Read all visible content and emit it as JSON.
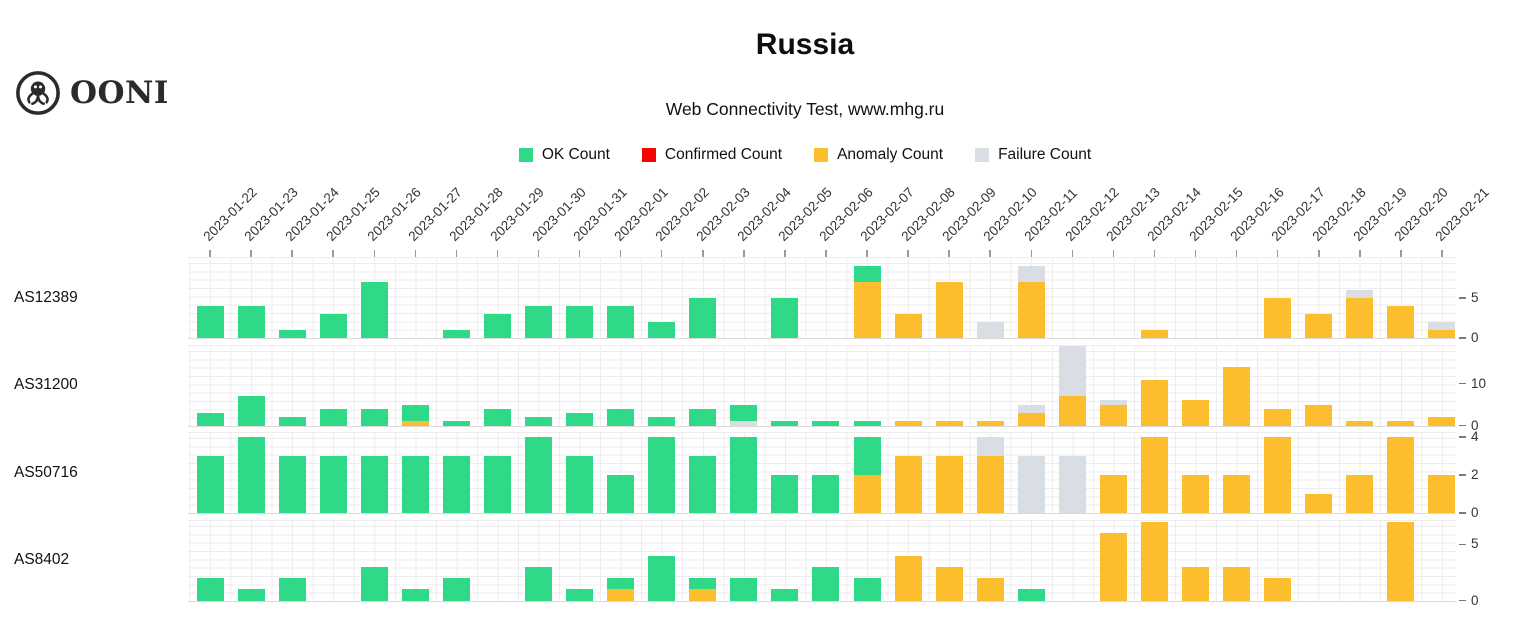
{
  "logo": {
    "text": "OONI"
  },
  "header": {
    "title": "Russia",
    "subtitle": "Web Connectivity Test, www.mhg.ru"
  },
  "legend": [
    {
      "key": "ok",
      "label": "OK Count",
      "color": "#2fd987"
    },
    {
      "key": "confirmed",
      "label": "Confirmed Count",
      "color": "#f50404"
    },
    {
      "key": "anomaly",
      "label": "Anomaly Count",
      "color": "#fcbe2c"
    },
    {
      "key": "failure",
      "label": "Failure Count",
      "color": "#d9dee4"
    }
  ],
  "chart_data": {
    "type": "bar",
    "stacked": true,
    "stack_order": [
      "anomaly",
      "confirmed",
      "failure",
      "ok"
    ],
    "title": "Russia",
    "subtitle": "Web Connectivity Test, www.mhg.ru",
    "legend_position": "top-center",
    "grid": true,
    "x_tick_rotation": -45,
    "categories": [
      "2023-01-22",
      "2023-01-23",
      "2023-01-24",
      "2023-01-25",
      "2023-01-26",
      "2023-01-27",
      "2023-01-28",
      "2023-01-29",
      "2023-01-30",
      "2023-01-31",
      "2023-02-01",
      "2023-02-02",
      "2023-02-03",
      "2023-02-04",
      "2023-02-05",
      "2023-02-06",
      "2023-02-07",
      "2023-02-08",
      "2023-02-09",
      "2023-02-10",
      "2023-02-11",
      "2023-02-12",
      "2023-02-13",
      "2023-02-14",
      "2023-02-15",
      "2023-02-16",
      "2023-02-17",
      "2023-02-18",
      "2023-02-19",
      "2023-02-20",
      "2023-02-21"
    ],
    "panels": [
      {
        "label": "AS12389",
        "ylim": [
          0,
          10.1
        ],
        "yticks": [
          0,
          5
        ],
        "series": {
          "ok": [
            4,
            4,
            1,
            3,
            7,
            0,
            1,
            3,
            4,
            4,
            4,
            2,
            5,
            0,
            5,
            0,
            2,
            0,
            0,
            0,
            0,
            0,
            0,
            0,
            0,
            0,
            0,
            0,
            0,
            0,
            0
          ],
          "confirmed": [
            0,
            0,
            0,
            0,
            0,
            0,
            0,
            0,
            0,
            0,
            0,
            0,
            0,
            0,
            0,
            0,
            0,
            0,
            0,
            0,
            0,
            0,
            0,
            0,
            0,
            0,
            0,
            0,
            0,
            0,
            0
          ],
          "anomaly": [
            0,
            0,
            0,
            0,
            0,
            0,
            0,
            0,
            0,
            0,
            0,
            0,
            0,
            0,
            0,
            0,
            7,
            3,
            7,
            0,
            7,
            0,
            0,
            1,
            0,
            0,
            5,
            3,
            5,
            4,
            1
          ],
          "failure": [
            0,
            0,
            0,
            0,
            0,
            0,
            0,
            0,
            0,
            0,
            0,
            0,
            0,
            0,
            0,
            0,
            0,
            0,
            0,
            2,
            2,
            0,
            0,
            0,
            0,
            0,
            0,
            0,
            1,
            0,
            1
          ]
        }
      },
      {
        "label": "AS31200",
        "ylim": [
          0,
          19.4
        ],
        "yticks": [
          0,
          10
        ],
        "series": {
          "ok": [
            3,
            7,
            2,
            4,
            4,
            4,
            1,
            4,
            2,
            3,
            4,
            2,
            4,
            4,
            1,
            1,
            1,
            0,
            0,
            0,
            0,
            0,
            0,
            0,
            0,
            0,
            0,
            0,
            0,
            0,
            0
          ],
          "confirmed": [
            0,
            0,
            0,
            0,
            0,
            0,
            0,
            0,
            0,
            0,
            0,
            0,
            0,
            0,
            0,
            0,
            0,
            0,
            0,
            0,
            0,
            0,
            0,
            0,
            0,
            0,
            0,
            0,
            0,
            0,
            0
          ],
          "anomaly": [
            0,
            0,
            0,
            0,
            0,
            1,
            0,
            0,
            0,
            0,
            0,
            0,
            0,
            0,
            0,
            0,
            0,
            1,
            1,
            1,
            3,
            7,
            5,
            11,
            6,
            14,
            4,
            5,
            1,
            1,
            2
          ],
          "failure": [
            0,
            0,
            0,
            0,
            0,
            0,
            0,
            0,
            0,
            0,
            0,
            0,
            0,
            1,
            0,
            0,
            0,
            0,
            0,
            0,
            2,
            12,
            1,
            0,
            0,
            0,
            0,
            0,
            0,
            0,
            0
          ]
        }
      },
      {
        "label": "AS50716",
        "ylim": [
          0,
          4.26
        ],
        "yticks": [
          0,
          2,
          4
        ],
        "series": {
          "ok": [
            3,
            4,
            3,
            3,
            3,
            3,
            3,
            3,
            4,
            3,
            2,
            4,
            3,
            4,
            2,
            2,
            2,
            0,
            0,
            0,
            0,
            0,
            0,
            0,
            0,
            0,
            0,
            0,
            0,
            0,
            0
          ],
          "confirmed": [
            0,
            0,
            0,
            0,
            0,
            0,
            0,
            0,
            0,
            0,
            0,
            0,
            0,
            0,
            0,
            0,
            0,
            0,
            0,
            0,
            0,
            0,
            0,
            0,
            0,
            0,
            0,
            0,
            0,
            0,
            0
          ],
          "anomaly": [
            0,
            0,
            0,
            0,
            0,
            0,
            0,
            0,
            0,
            0,
            0,
            0,
            0,
            0,
            0,
            0,
            2,
            3,
            3,
            3,
            0,
            0,
            2,
            4,
            2,
            2,
            4,
            1,
            2,
            4,
            2
          ],
          "failure": [
            0,
            0,
            0,
            0,
            0,
            0,
            0,
            0,
            0,
            0,
            0,
            0,
            0,
            0,
            0,
            0,
            0,
            0,
            0,
            1,
            3,
            3,
            0,
            0,
            0,
            0,
            0,
            0,
            0,
            0,
            0
          ]
        }
      },
      {
        "label": "AS8402",
        "ylim": [
          0,
          7.23
        ],
        "yticks": [
          0,
          5
        ],
        "series": {
          "ok": [
            2,
            1,
            2,
            0,
            3,
            1,
            2,
            0,
            3,
            1,
            1,
            4,
            1,
            2,
            1,
            3,
            2,
            0,
            0,
            0,
            1,
            0,
            0,
            0,
            0,
            0,
            0,
            0,
            0,
            0,
            0
          ],
          "confirmed": [
            0,
            0,
            0,
            0,
            0,
            0,
            0,
            0,
            0,
            0,
            0,
            0,
            0,
            0,
            0,
            0,
            0,
            0,
            0,
            0,
            0,
            0,
            0,
            0,
            0,
            0,
            0,
            0,
            0,
            0,
            0
          ],
          "anomaly": [
            0,
            0,
            0,
            0,
            0,
            0,
            0,
            0,
            0,
            0,
            1,
            0,
            1,
            0,
            0,
            0,
            0,
            4,
            3,
            2,
            0,
            0,
            6,
            7,
            3,
            3,
            2,
            0,
            0,
            7,
            0
          ],
          "failure": [
            0,
            0,
            0,
            0,
            0,
            0,
            0,
            0,
            0,
            0,
            0,
            0,
            0,
            0,
            0,
            0,
            0,
            0,
            0,
            0,
            0,
            0,
            0,
            0,
            0,
            0,
            0,
            0,
            0,
            0,
            0
          ]
        }
      }
    ]
  }
}
